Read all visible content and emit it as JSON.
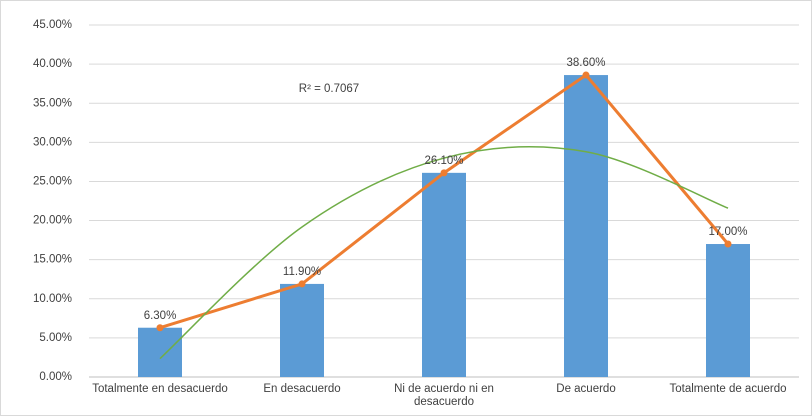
{
  "chart_data": {
    "type": "bar",
    "categories": [
      "Totalmente en desacuerdo",
      "En desacuerdo",
      "Ni de acuerdo ni en desacuerdo",
      "De acuerdo",
      "Totalmente de acuerdo"
    ],
    "series": [
      {
        "type": "bar",
        "color": "#5b9bd5",
        "values": [
          6.3,
          11.9,
          26.1,
          38.6,
          17.0
        ],
        "value_labels": [
          "6.30%",
          "11.90%",
          "26.10%",
          "38.60%",
          "17.00%"
        ]
      },
      {
        "type": "line",
        "color": "#ed7d31",
        "values": [
          6.3,
          11.9,
          26.1,
          38.6,
          17.0
        ]
      },
      {
        "type": "trendline",
        "color": "#70ad47",
        "values": [
          2.35,
          19.18,
          27.99,
          28.8,
          21.59
        ]
      }
    ],
    "annotation": "R² = 0.7067",
    "ylim": [
      0,
      45
    ],
    "yticks": [
      {
        "value": 0,
        "label": "0.00%"
      },
      {
        "value": 5,
        "label": "5.00%"
      },
      {
        "value": 10,
        "label": "10.00%"
      },
      {
        "value": 15,
        "label": "15.00%"
      },
      {
        "value": 20,
        "label": "20.00%"
      },
      {
        "value": 25,
        "label": "25.00%"
      },
      {
        "value": 30,
        "label": "30.00%"
      },
      {
        "value": 35,
        "label": "35.00%"
      },
      {
        "value": 40,
        "label": "40.00%"
      },
      {
        "value": 45,
        "label": "45.00%"
      }
    ],
    "grid": true
  }
}
